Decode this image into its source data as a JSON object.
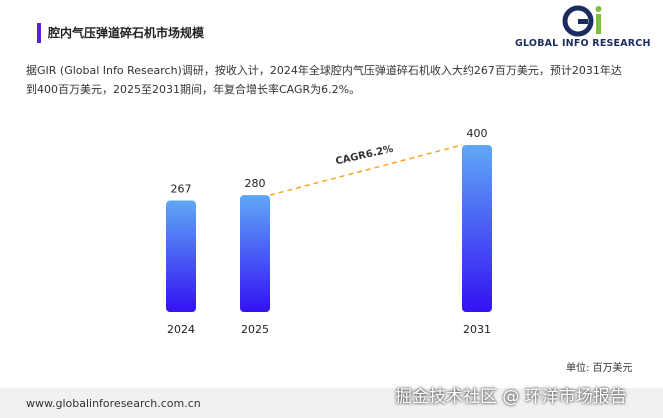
{
  "chart_data": {
    "type": "bar",
    "title": "腔内气压弹道碎石机市场规模",
    "description": "据GIR (Global Info Research)调研，按收入计，2024年全球腔内气压弹道碎石机收入大约267百万美元，预计2031年达到400百万美元，2025至2031期间，年复合增长率CAGR为6.2%。",
    "categories": [
      "2024",
      "2025",
      "2031"
    ],
    "values": [
      267,
      280,
      400
    ],
    "color_top": "#5fa8f6",
    "color_bottom": "#3312f2",
    "annotation": "CAGR6.2%",
    "unit": "单位: 百万美元"
  },
  "logo": {
    "text": "GLOBAL INFO RESEARCH"
  },
  "footer": {
    "url": "www.globalinforesearch.com.cn",
    "watermark": "掘金技术社区 @ 环洋市场报告"
  }
}
